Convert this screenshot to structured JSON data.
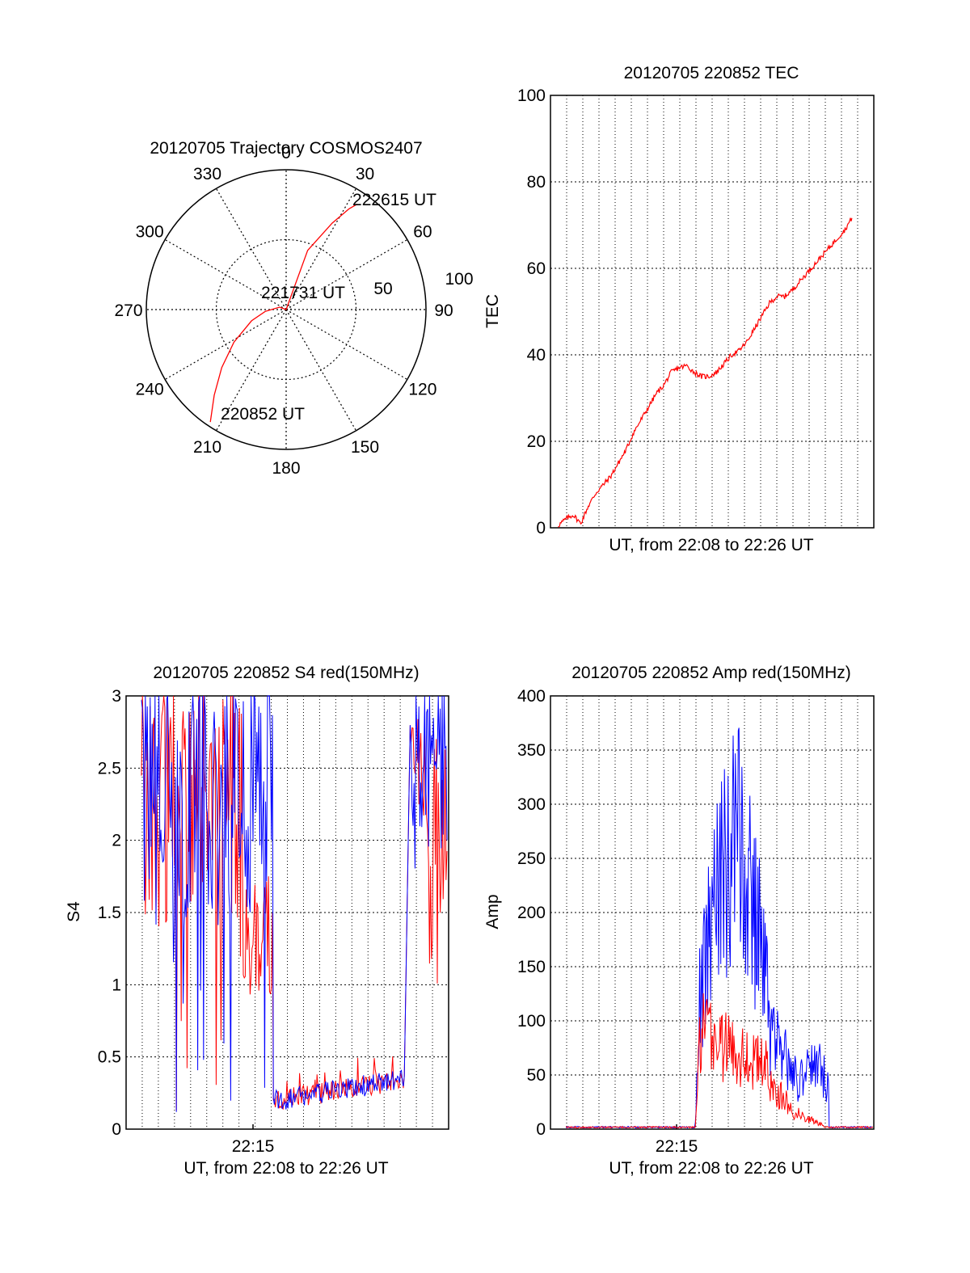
{
  "colors": {
    "red": "#ff0000",
    "blue": "#0000ff",
    "axis": "#000000",
    "grid": "#000000"
  },
  "chart_data": [
    {
      "type": "polar",
      "title": "20120705 Trajectory COSMOS2407",
      "angle_labels": [
        "0",
        "30",
        "60",
        "90",
        "120",
        "150",
        "180",
        "210",
        "240",
        "270",
        "300",
        "330"
      ],
      "radius_labels": [
        "50",
        "100"
      ],
      "r_max": 100,
      "series": [
        {
          "color": "#ff0000",
          "points": [
            [
              214,
              97
            ],
            [
              220,
              80
            ],
            [
              228,
              62
            ],
            [
              238,
              44
            ],
            [
              252,
              26
            ],
            [
              265,
              15
            ],
            [
              290,
              5
            ],
            [
              360,
              0
            ],
            [
              20,
              45
            ],
            [
              28,
              70
            ],
            [
              32,
              85
            ],
            [
              34,
              91
            ]
          ]
        }
      ],
      "annotations": [
        {
          "text": "222615 UT",
          "az": 35,
          "r": 85
        },
        {
          "text": "221731 UT",
          "az": 345,
          "r": 5
        },
        {
          "text": "220852 UT",
          "az": 200,
          "r": 95
        }
      ]
    },
    {
      "type": "line",
      "title": "20120705 220852 TEC",
      "xlabel": "UT, from 22:08 to 22:26 UT",
      "ylabel": "TEC",
      "ylim": [
        0,
        100
      ],
      "yticks": [
        "0",
        "20",
        "40",
        "60",
        "80",
        "100"
      ],
      "grid": true,
      "series": [
        {
          "color": "#ff0000",
          "x": [
            0.5,
            1.0,
            1.5,
            2.0,
            2.5,
            3.0,
            3.5,
            4.0,
            4.5,
            5.0,
            5.5,
            6.0,
            6.5,
            7.0,
            7.5,
            8.0,
            8.5,
            9.0,
            9.5,
            10.0,
            10.5,
            11.0,
            11.5,
            12.0,
            12.5,
            13.0,
            13.5,
            14.0,
            14.5,
            15.0,
            15.5,
            16.0,
            16.5,
            17.0,
            17.5,
            18.0,
            18.5,
            19.0,
            19.5,
            20.0
          ],
          "y": [
            0.5,
            2,
            3,
            1,
            5,
            8,
            10,
            12,
            15,
            18,
            22,
            25,
            28,
            31,
            33,
            36,
            37,
            37.5,
            36,
            35,
            35,
            36,
            38,
            40,
            41,
            43,
            46,
            49,
            52,
            53.5,
            53.5,
            55,
            57,
            59,
            61,
            63,
            65,
            67,
            69,
            72
          ]
        }
      ]
    },
    {
      "type": "line",
      "title": "20120705 220852 S4 red(150MHz)",
      "xlabel": "UT, from 22:08 to 22:26 UT",
      "ylabel": "S4",
      "ylim": [
        0,
        3
      ],
      "yticks": [
        "0",
        "0.5",
        "1",
        "1.5",
        "2",
        "2.5",
        "3"
      ],
      "xtick_label": "22:15",
      "grid": true
    },
    {
      "type": "line",
      "title": "20120705 220852 Amp red(150MHz)",
      "xlabel": "UT, from 22:08 to 22:26 UT",
      "ylabel": "Amp",
      "ylim": [
        0,
        400
      ],
      "yticks": [
        "0",
        "50",
        "100",
        "150",
        "200",
        "250",
        "300",
        "350",
        "400"
      ],
      "xtick_label": "22:15",
      "grid": true
    }
  ]
}
